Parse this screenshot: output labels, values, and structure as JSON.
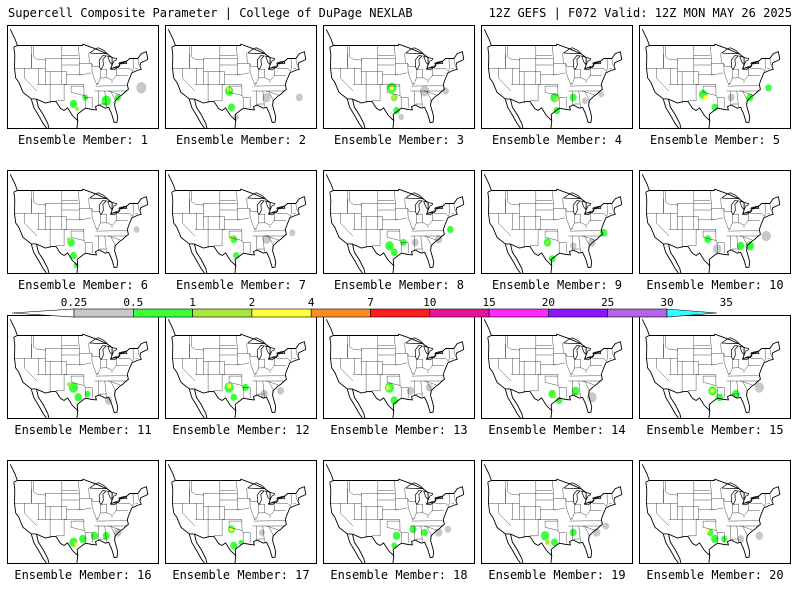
{
  "header": {
    "left": "Supercell Composite Parameter | College of DuPage NEXLAB",
    "right": "12Z GEFS | F072 Valid: 12Z MON MAY 26 2025"
  },
  "colorbar": {
    "ticks": [
      "0.25",
      "0.5",
      "1",
      "2",
      "4",
      "7",
      "10",
      "15",
      "20",
      "25",
      "30",
      "35"
    ],
    "colors": [
      "#c8c8c8",
      "#3cff3c",
      "#a8e83c",
      "#ffff3c",
      "#ff8c1e",
      "#ff1e1e",
      "#e6149b",
      "#ff28ff",
      "#8c14ff",
      "#b464e6",
      "#32ffff"
    ]
  },
  "panels": [
    {
      "label": "Ensemble Member: 1",
      "blobs": [
        [
          -99,
          31,
          1.6,
          1
        ],
        [
          -97.5,
          29.5,
          0.8,
          2
        ],
        [
          -94,
          33,
          1.2,
          1
        ],
        [
          -85,
          32,
          2.0,
          1
        ],
        [
          -80,
          33,
          1.3,
          1
        ],
        [
          -70,
          36,
          2.2,
          0
        ]
      ]
    },
    {
      "label": "Ensemble Member: 2",
      "blobs": [
        [
          -100,
          35,
          1.8,
          1
        ],
        [
          -100,
          35.5,
          0.9,
          3
        ],
        [
          -99,
          30,
          1.5,
          1
        ],
        [
          -97,
          27,
          1.2,
          0
        ],
        [
          -84,
          33,
          1.8,
          0
        ],
        [
          -70,
          33,
          1.5,
          0
        ]
      ]
    },
    {
      "label": "Ensemble Member: 3",
      "blobs": [
        [
          -98,
          36,
          2.0,
          1
        ],
        [
          -98,
          36,
          0.9,
          3
        ],
        [
          -97,
          33,
          1.5,
          2
        ],
        [
          -96,
          29,
          1.4,
          1
        ],
        [
          -94,
          27,
          1.2,
          0
        ],
        [
          -84,
          35,
          2.0,
          0
        ],
        [
          -75,
          35,
          1.4,
          0
        ]
      ]
    },
    {
      "label": "Ensemble Member: 4",
      "blobs": [
        [
          -96,
          33,
          1.8,
          1
        ],
        [
          -95,
          32.5,
          0.9,
          2
        ],
        [
          -95,
          29,
          1.4,
          1
        ],
        [
          -88,
          33,
          1.5,
          1
        ],
        [
          -83,
          32,
          1.3,
          0
        ],
        [
          -76,
          34,
          1.2,
          0
        ]
      ]
    },
    {
      "label": "Ensemble Member: 5",
      "blobs": [
        [
          -100,
          34,
          1.8,
          1
        ],
        [
          -99,
          33,
          0.9,
          3
        ],
        [
          -95,
          30,
          1.4,
          1
        ],
        [
          -88,
          33,
          1.5,
          0
        ],
        [
          -80,
          33,
          1.5,
          1
        ],
        [
          -72,
          36,
          1.4,
          1
        ]
      ]
    },
    {
      "label": "Ensemble Member: 6",
      "blobs": [
        [
          -100,
          33,
          1.6,
          1
        ],
        [
          -101,
          34,
          0.8,
          2
        ],
        [
          -99,
          29,
          1.4,
          1
        ],
        [
          -98,
          26,
          1.0,
          1
        ],
        [
          -72,
          37,
          1.3,
          0
        ]
      ]
    },
    {
      "label": "Ensemble Member: 7",
      "blobs": [
        [
          -98,
          34,
          1.5,
          1
        ],
        [
          -99,
          34.5,
          0.8,
          2
        ],
        [
          -97,
          29,
          1.3,
          1
        ],
        [
          -84,
          34,
          1.8,
          0
        ],
        [
          -73,
          36,
          1.3,
          0
        ]
      ]
    },
    {
      "label": "Ensemble Member: 8",
      "blobs": [
        [
          -99,
          32,
          1.8,
          1
        ],
        [
          -97,
          30,
          1.5,
          1
        ],
        [
          -93,
          33,
          1.4,
          1
        ],
        [
          -88,
          33,
          1.5,
          0
        ],
        [
          -78,
          34,
          1.6,
          0
        ],
        [
          -73,
          37,
          1.4,
          1
        ]
      ]
    },
    {
      "label": "Ensemble Member: 9",
      "blobs": [
        [
          -99,
          33,
          1.6,
          1
        ],
        [
          -99,
          33,
          0.8,
          2
        ],
        [
          -97,
          28,
          1.4,
          1
        ],
        [
          -88,
          32,
          1.4,
          0
        ],
        [
          -80,
          33,
          1.6,
          0
        ],
        [
          -75,
          36,
          1.5,
          1
        ]
      ]
    },
    {
      "label": "Ensemble Member: 10",
      "blobs": [
        [
          -98,
          34,
          1.5,
          1
        ],
        [
          -94,
          31,
          1.8,
          0
        ],
        [
          -84,
          32,
          1.6,
          1
        ],
        [
          -80,
          32,
          1.8,
          1
        ],
        [
          -73,
          35,
          2.0,
          0
        ]
      ]
    },
    {
      "label": "Ensemble Member: 11",
      "blobs": [
        [
          -99,
          33,
          2.0,
          1
        ],
        [
          -101,
          34,
          0.8,
          2
        ],
        [
          -97,
          30,
          1.6,
          1
        ],
        [
          -93,
          31,
          1.2,
          1
        ],
        [
          -84,
          29,
          1.6,
          0
        ]
      ]
    },
    {
      "label": "Ensemble Member: 12",
      "blobs": [
        [
          -100,
          33,
          2.0,
          1
        ],
        [
          -100,
          33.5,
          1.0,
          3
        ],
        [
          -98,
          30,
          1.4,
          1
        ],
        [
          -93,
          33,
          1.4,
          1
        ],
        [
          -85,
          31,
          1.6,
          0
        ],
        [
          -78,
          32,
          1.5,
          0
        ]
      ]
    },
    {
      "label": "Ensemble Member: 13",
      "blobs": [
        [
          -99,
          33,
          2.0,
          1
        ],
        [
          -99.5,
          33,
          1.0,
          3
        ],
        [
          -97,
          29,
          1.6,
          1
        ],
        [
          -90,
          32,
          1.6,
          0
        ],
        [
          -82,
          33,
          1.5,
          0
        ]
      ]
    },
    {
      "label": "Ensemble Member: 14",
      "blobs": [
        [
          -97,
          31,
          1.6,
          1
        ],
        [
          -96,
          30.5,
          0.8,
          2
        ],
        [
          -94,
          29,
          1.4,
          1
        ],
        [
          -87,
          32,
          1.6,
          1
        ],
        [
          -80,
          30,
          2.0,
          0
        ]
      ]
    },
    {
      "label": "Ensemble Member: 15",
      "blobs": [
        [
          -96,
          32,
          1.8,
          1
        ],
        [
          -96,
          32,
          0.9,
          3
        ],
        [
          -93,
          30,
          1.5,
          1
        ],
        [
          -86,
          31,
          1.6,
          1
        ],
        [
          -76,
          33,
          2.0,
          0
        ]
      ]
    },
    {
      "label": "Ensemble Member: 16",
      "blobs": [
        [
          -99,
          30,
          1.8,
          1
        ],
        [
          -98,
          29.5,
          0.8,
          3
        ],
        [
          -95,
          31,
          1.6,
          1
        ],
        [
          -90,
          32,
          1.6,
          1
        ],
        [
          -85,
          32,
          1.5,
          1
        ],
        [
          -80,
          33,
          1.6,
          0
        ]
      ]
    },
    {
      "label": "Ensemble Member: 17",
      "blobs": [
        [
          -99,
          34,
          1.5,
          1
        ],
        [
          -99,
          34,
          0.8,
          3
        ],
        [
          -98,
          29,
          1.5,
          1
        ],
        [
          -95,
          30,
          1.0,
          1
        ],
        [
          -86,
          33,
          1.3,
          0
        ]
      ]
    },
    {
      "label": "Ensemble Member: 18",
      "blobs": [
        [
          -96,
          32,
          1.6,
          1
        ],
        [
          -97,
          29,
          1.2,
          1
        ],
        [
          -89,
          34,
          1.5,
          1
        ],
        [
          -84,
          33,
          1.4,
          1
        ],
        [
          -78,
          33,
          1.6,
          0
        ],
        [
          -74,
          34,
          1.4,
          0
        ]
      ]
    },
    {
      "label": "Ensemble Member: 19",
      "blobs": [
        [
          -100,
          32,
          1.8,
          1
        ],
        [
          -99,
          30,
          1.0,
          2
        ],
        [
          -96,
          30,
          1.5,
          1
        ],
        [
          -88,
          33,
          1.5,
          1
        ],
        [
          -78,
          33,
          1.6,
          0
        ],
        [
          -74,
          35,
          1.4,
          0
        ]
      ]
    },
    {
      "label": "Ensemble Member: 20",
      "blobs": [
        [
          -97,
          33,
          1.4,
          1
        ],
        [
          -98,
          33.5,
          0.7,
          3
        ],
        [
          -95,
          31,
          1.6,
          1
        ],
        [
          -91,
          31,
          1.3,
          1
        ],
        [
          -84,
          31,
          1.5,
          0
        ],
        [
          -76,
          32,
          1.6,
          0
        ]
      ]
    }
  ]
}
